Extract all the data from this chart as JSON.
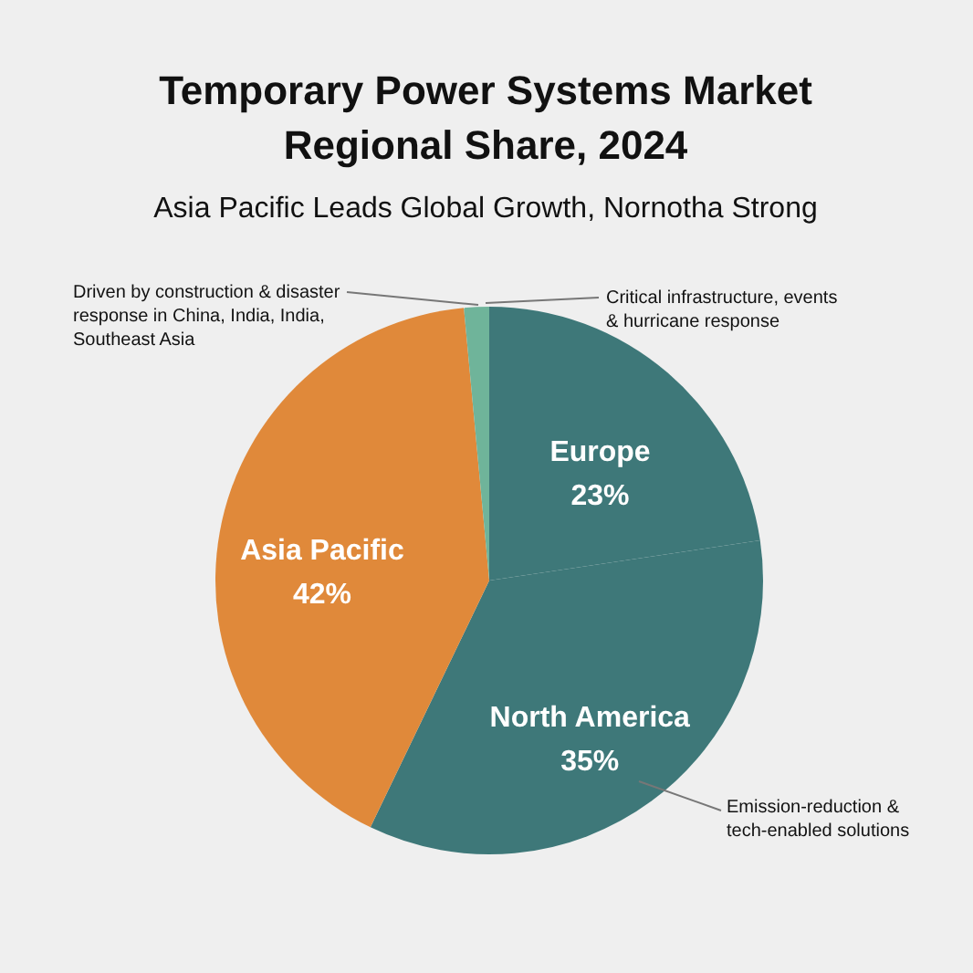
{
  "chart_data": {
    "type": "pie",
    "title": "Temporary Power Systems Market Regional Share, 2024",
    "subtitle": "Asia Pacific Leads Global Growth, Nornotha Strong",
    "categories": [
      "Europe",
      "North America",
      "Asia Pacific",
      null
    ],
    "values": [
      23,
      35,
      42,
      1.5
    ],
    "colors": [
      "#3e7879",
      "#3e7879",
      "#e0893a",
      "#6fb49a"
    ],
    "value_labels": [
      "23%",
      "35%",
      "42%",
      null
    ],
    "annotations": [
      "Driven by construction & disaster response in China, India, India, Southeast Asia",
      "Critical infrastructure, events & hurricane response",
      "Emission-reduction & tech-enabled solutions"
    ],
    "data_labels": false
  }
}
